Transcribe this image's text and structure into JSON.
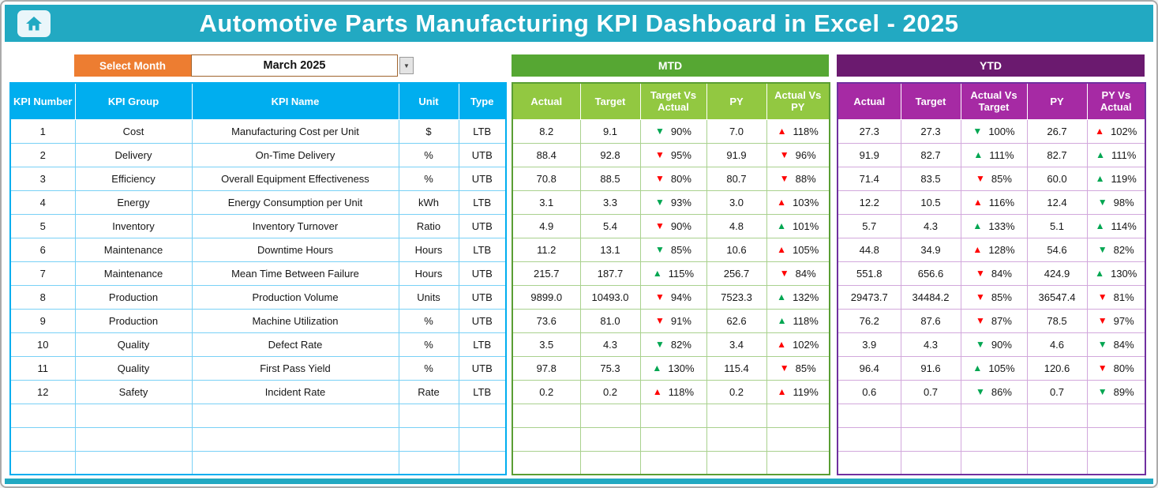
{
  "colors": {
    "teal": "#22A9C2",
    "orange": "#ED7D31",
    "blue": "#00AEEF",
    "blue_grid": "#79D1F6",
    "green_banner": "#56A733",
    "green_head": "#92C841",
    "green_grid": "#A9D18E",
    "green_border": "#5A9E34",
    "purple_banner": "#6B1A6F",
    "purple_head": "#A62AA4",
    "purple_grid": "#D2A8DC",
    "purple_border": "#7030A0",
    "trend_green": "#00A651",
    "trend_red": "#FF0000"
  },
  "header": {
    "title": "Automotive Parts Manufacturing KPI Dashboard in Excel - 2025"
  },
  "controls": {
    "select_month_label": "Select Month",
    "selected_month": "March 2025",
    "dropdown_icon": "▼"
  },
  "icons": {
    "up": "▲",
    "down": "▼"
  },
  "kpi_table": {
    "headers": [
      "KPI Number",
      "KPI Group",
      "KPI Name",
      "Unit",
      "Type"
    ],
    "rows": [
      [
        "1",
        "Cost",
        "Manufacturing Cost per Unit",
        "$",
        "LTB"
      ],
      [
        "2",
        "Delivery",
        "On-Time Delivery",
        "%",
        "UTB"
      ],
      [
        "3",
        "Efficiency",
        "Overall Equipment Effectiveness",
        "%",
        "UTB"
      ],
      [
        "4",
        "Energy",
        "Energy Consumption per Unit",
        "kWh",
        "LTB"
      ],
      [
        "5",
        "Inventory",
        "Inventory Turnover",
        "Ratio",
        "UTB"
      ],
      [
        "6",
        "Maintenance",
        "Downtime Hours",
        "Hours",
        "LTB"
      ],
      [
        "7",
        "Maintenance",
        "Mean Time Between Failure",
        "Hours",
        "UTB"
      ],
      [
        "8",
        "Production",
        "Production Volume",
        "Units",
        "UTB"
      ],
      [
        "9",
        "Production",
        "Machine Utilization",
        "%",
        "UTB"
      ],
      [
        "10",
        "Quality",
        "Defect Rate",
        "%",
        "LTB"
      ],
      [
        "11",
        "Quality",
        "First Pass Yield",
        "%",
        "UTB"
      ],
      [
        "12",
        "Safety",
        "Incident Rate",
        "Rate",
        "LTB"
      ]
    ],
    "empty_row_count": 3
  },
  "mtd": {
    "banner": "MTD",
    "headers": [
      "Actual",
      "Target",
      "Target Vs Actual",
      "PY",
      "Actual Vs PY"
    ],
    "rows": [
      [
        "8.2",
        "9.1",
        {
          "t": "down",
          "c": "green",
          "v": "90%"
        },
        "7.0",
        {
          "t": "up",
          "c": "red",
          "v": "118%"
        }
      ],
      [
        "88.4",
        "92.8",
        {
          "t": "down",
          "c": "red",
          "v": "95%"
        },
        "91.9",
        {
          "t": "down",
          "c": "red",
          "v": "96%"
        }
      ],
      [
        "70.8",
        "88.5",
        {
          "t": "down",
          "c": "red",
          "v": "80%"
        },
        "80.7",
        {
          "t": "down",
          "c": "red",
          "v": "88%"
        }
      ],
      [
        "3.1",
        "3.3",
        {
          "t": "down",
          "c": "green",
          "v": "93%"
        },
        "3.0",
        {
          "t": "up",
          "c": "red",
          "v": "103%"
        }
      ],
      [
        "4.9",
        "5.4",
        {
          "t": "down",
          "c": "red",
          "v": "90%"
        },
        "4.8",
        {
          "t": "up",
          "c": "green",
          "v": "101%"
        }
      ],
      [
        "11.2",
        "13.1",
        {
          "t": "down",
          "c": "green",
          "v": "85%"
        },
        "10.6",
        {
          "t": "up",
          "c": "red",
          "v": "105%"
        }
      ],
      [
        "215.7",
        "187.7",
        {
          "t": "up",
          "c": "green",
          "v": "115%"
        },
        "256.7",
        {
          "t": "down",
          "c": "red",
          "v": "84%"
        }
      ],
      [
        "9899.0",
        "10493.0",
        {
          "t": "down",
          "c": "red",
          "v": "94%"
        },
        "7523.3",
        {
          "t": "up",
          "c": "green",
          "v": "132%"
        }
      ],
      [
        "73.6",
        "81.0",
        {
          "t": "down",
          "c": "red",
          "v": "91%"
        },
        "62.6",
        {
          "t": "up",
          "c": "green",
          "v": "118%"
        }
      ],
      [
        "3.5",
        "4.3",
        {
          "t": "down",
          "c": "green",
          "v": "82%"
        },
        "3.4",
        {
          "t": "up",
          "c": "red",
          "v": "102%"
        }
      ],
      [
        "97.8",
        "75.3",
        {
          "t": "up",
          "c": "green",
          "v": "130%"
        },
        "115.4",
        {
          "t": "down",
          "c": "red",
          "v": "85%"
        }
      ],
      [
        "0.2",
        "0.2",
        {
          "t": "up",
          "c": "red",
          "v": "118%"
        },
        "0.2",
        {
          "t": "up",
          "c": "red",
          "v": "119%"
        }
      ]
    ],
    "empty_row_count": 3
  },
  "ytd": {
    "banner": "YTD",
    "headers": [
      "Actual",
      "Target",
      "Actual Vs Target",
      "PY",
      "PY Vs Actual"
    ],
    "rows": [
      [
        "27.3",
        "27.3",
        {
          "t": "down",
          "c": "green",
          "v": "100%"
        },
        "26.7",
        {
          "t": "up",
          "c": "red",
          "v": "102%"
        }
      ],
      [
        "91.9",
        "82.7",
        {
          "t": "up",
          "c": "green",
          "v": "111%"
        },
        "82.7",
        {
          "t": "up",
          "c": "green",
          "v": "111%"
        }
      ],
      [
        "71.4",
        "83.5",
        {
          "t": "down",
          "c": "red",
          "v": "85%"
        },
        "60.0",
        {
          "t": "up",
          "c": "green",
          "v": "119%"
        }
      ],
      [
        "12.2",
        "10.5",
        {
          "t": "up",
          "c": "red",
          "v": "116%"
        },
        "12.4",
        {
          "t": "down",
          "c": "green",
          "v": "98%"
        }
      ],
      [
        "5.7",
        "4.3",
        {
          "t": "up",
          "c": "green",
          "v": "133%"
        },
        "5.1",
        {
          "t": "up",
          "c": "green",
          "v": "114%"
        }
      ],
      [
        "44.8",
        "34.9",
        {
          "t": "up",
          "c": "red",
          "v": "128%"
        },
        "54.6",
        {
          "t": "down",
          "c": "green",
          "v": "82%"
        }
      ],
      [
        "551.8",
        "656.6",
        {
          "t": "down",
          "c": "red",
          "v": "84%"
        },
        "424.9",
        {
          "t": "up",
          "c": "green",
          "v": "130%"
        }
      ],
      [
        "29473.7",
        "34484.2",
        {
          "t": "down",
          "c": "red",
          "v": "85%"
        },
        "36547.4",
        {
          "t": "down",
          "c": "red",
          "v": "81%"
        }
      ],
      [
        "76.2",
        "87.6",
        {
          "t": "down",
          "c": "red",
          "v": "87%"
        },
        "78.5",
        {
          "t": "down",
          "c": "red",
          "v": "97%"
        }
      ],
      [
        "3.9",
        "4.3",
        {
          "t": "down",
          "c": "green",
          "v": "90%"
        },
        "4.6",
        {
          "t": "down",
          "c": "green",
          "v": "84%"
        }
      ],
      [
        "96.4",
        "91.6",
        {
          "t": "up",
          "c": "green",
          "v": "105%"
        },
        "120.6",
        {
          "t": "down",
          "c": "red",
          "v": "80%"
        }
      ],
      [
        "0.6",
        "0.7",
        {
          "t": "down",
          "c": "green",
          "v": "86%"
        },
        "0.7",
        {
          "t": "down",
          "c": "green",
          "v": "89%"
        }
      ]
    ],
    "empty_row_count": 3
  }
}
